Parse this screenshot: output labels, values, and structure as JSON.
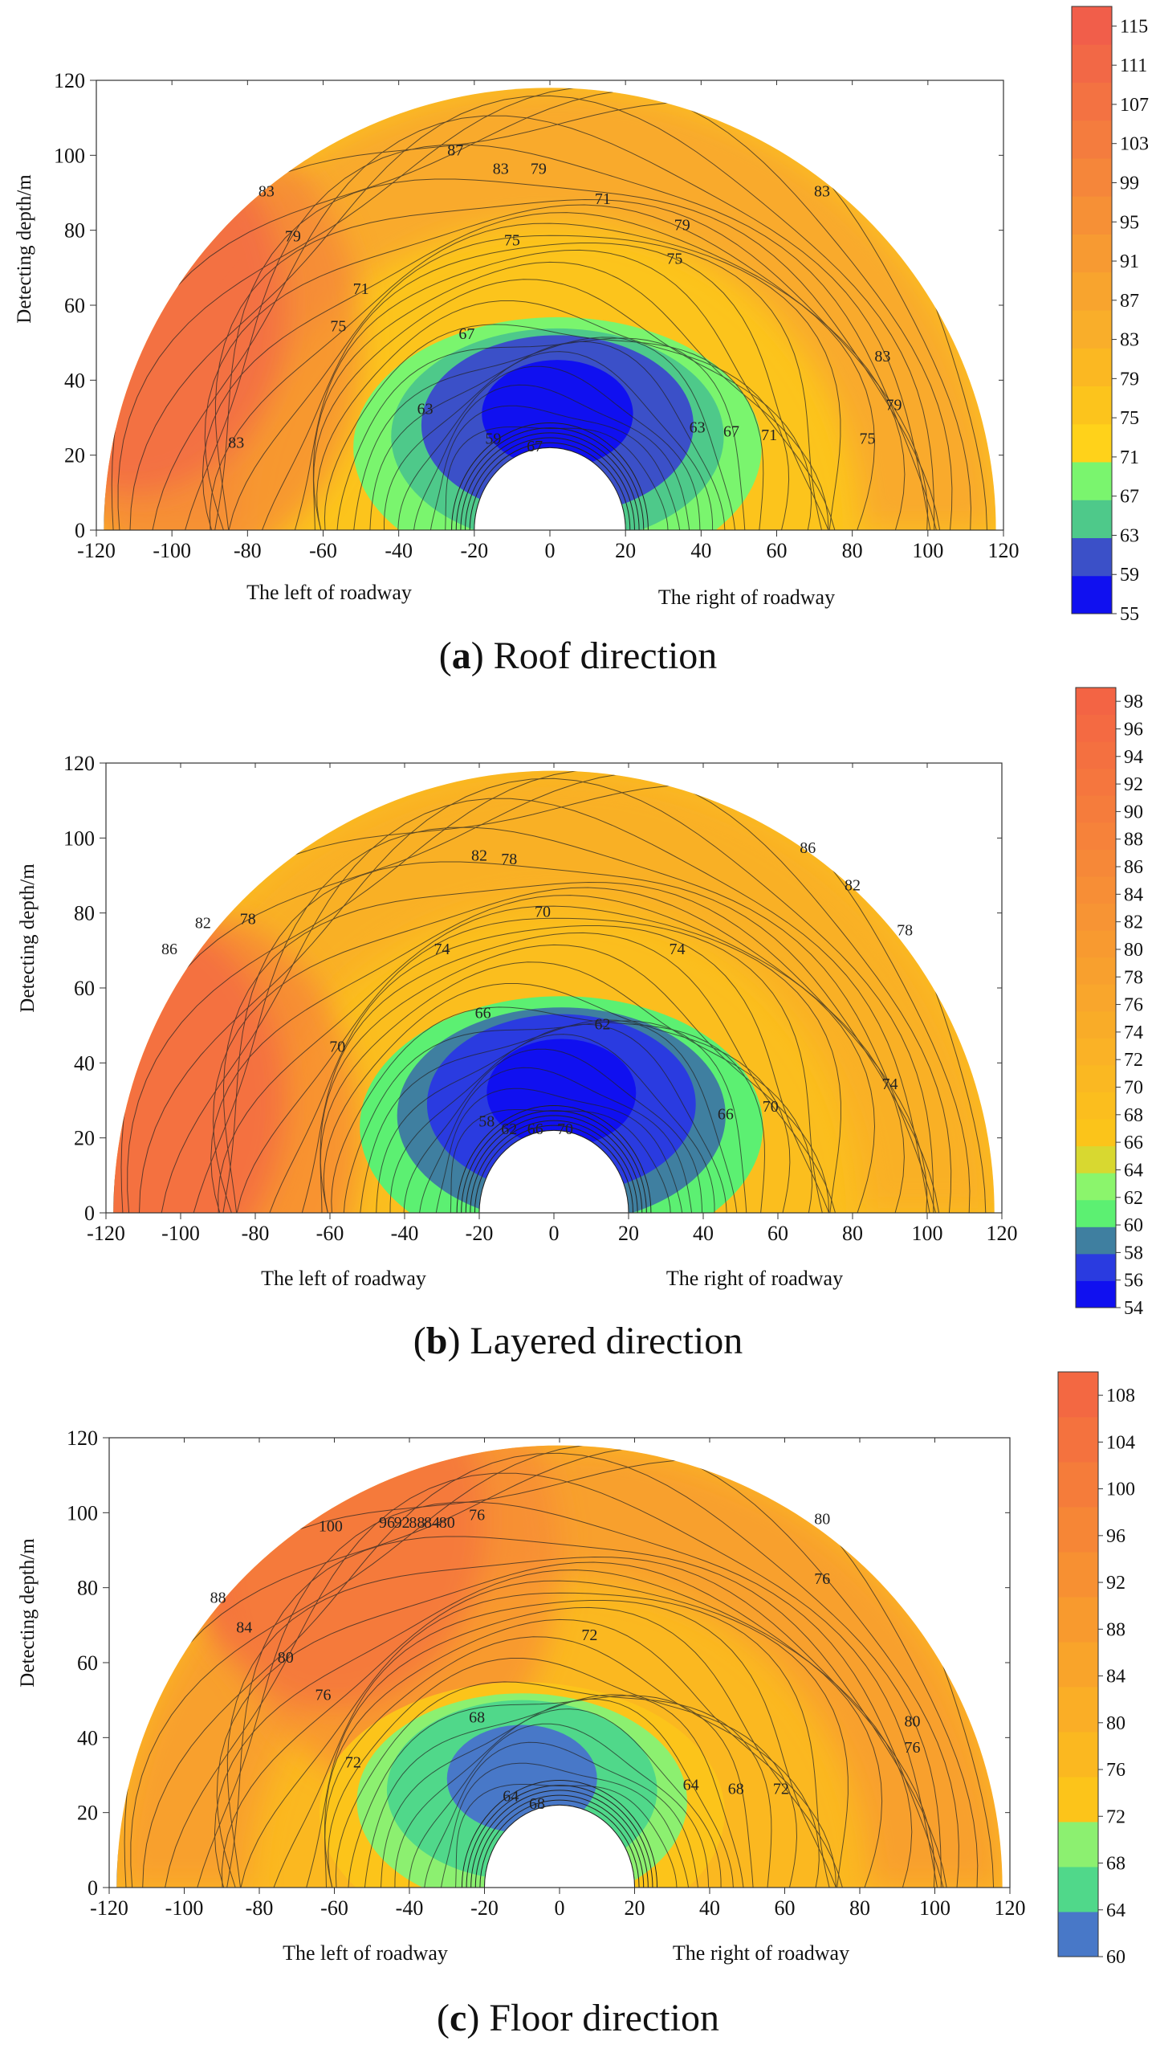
{
  "figure": {
    "panels": [
      {
        "letter": "a",
        "caption": "Roof direction"
      },
      {
        "letter": "b",
        "caption": "Layered direction"
      },
      {
        "letter": "c",
        "caption": "Floor direction"
      }
    ]
  },
  "chart_data": [
    {
      "type": "heatmap",
      "title": "",
      "xlabel": "",
      "ylabel": "Detecting depth/m",
      "side_labels": {
        "left": "The left of roadway",
        "right": "The right of roadway"
      },
      "xlim": [
        -120,
        120
      ],
      "ylim": [
        0,
        120
      ],
      "x_ticks": [
        -120,
        -100,
        -80,
        -60,
        -40,
        -20,
        0,
        20,
        40,
        60,
        80,
        100,
        120
      ],
      "y_ticks": [
        0,
        20,
        40,
        60,
        80,
        100,
        120
      ],
      "colorbar": {
        "min": 55,
        "max": 117,
        "ticks": [
          55,
          59,
          63,
          67,
          71,
          75,
          79,
          83,
          87,
          91,
          95,
          99,
          103,
          107,
          111,
          115
        ],
        "colors": [
          "#1010f0",
          "#3b50c8",
          "#4ec98a",
          "#7af56e",
          "#ffd21a",
          "#fcc41c",
          "#fbb822",
          "#f9ae2a",
          "#f8a42e",
          "#f79a32",
          "#f69036",
          "#f5863a",
          "#f47c3e",
          "#f37242",
          "#f26846",
          "#f15e4a"
        ]
      },
      "field": {
        "base": 76,
        "low_zone": {
          "center": [
            2,
            32
          ],
          "min": 55
        },
        "left_high": {
          "at": [
            -110,
            60
          ],
          "max": 115
        }
      },
      "contour_labels": [
        {
          "value": "87",
          "x": -25,
          "y": 100
        },
        {
          "value": "83",
          "x": -13,
          "y": 95
        },
        {
          "value": "79",
          "x": -3,
          "y": 95
        },
        {
          "value": "71",
          "x": 14,
          "y": 87
        },
        {
          "value": "75",
          "x": -10,
          "y": 76
        },
        {
          "value": "83",
          "x": 72,
          "y": 89
        },
        {
          "value": "79",
          "x": 35,
          "y": 80
        },
        {
          "value": "75",
          "x": 33,
          "y": 71
        },
        {
          "value": "79",
          "x": -68,
          "y": 77
        },
        {
          "value": "71",
          "x": -50,
          "y": 63
        },
        {
          "value": "75",
          "x": -56,
          "y": 53
        },
        {
          "value": "67",
          "x": -22,
          "y": 51
        },
        {
          "value": "83",
          "x": 88,
          "y": 45
        },
        {
          "value": "79",
          "x": 91,
          "y": 32
        },
        {
          "value": "75",
          "x": 84,
          "y": 23
        },
        {
          "value": "71",
          "x": 58,
          "y": 24
        },
        {
          "value": "67",
          "x": 48,
          "y": 25
        },
        {
          "value": "63",
          "x": 39,
          "y": 26
        },
        {
          "value": "63",
          "x": -33,
          "y": 31
        },
        {
          "value": "59",
          "x": -15,
          "y": 23
        },
        {
          "value": "67",
          "x": -4,
          "y": 21
        },
        {
          "value": "83",
          "x": -83,
          "y": 22
        },
        {
          "value": "83",
          "x": -75,
          "y": 89
        }
      ]
    },
    {
      "type": "heatmap",
      "title": "",
      "xlabel": "",
      "ylabel": "Detecting depth/m",
      "side_labels": {
        "left": "The left of roadway",
        "right": "The right of roadway"
      },
      "xlim": [
        -120,
        120
      ],
      "ylim": [
        0,
        120
      ],
      "x_ticks": [
        -120,
        -100,
        -80,
        -60,
        -40,
        -20,
        0,
        20,
        40,
        60,
        80,
        100,
        120
      ],
      "y_ticks": [
        0,
        20,
        40,
        60,
        80,
        100,
        120
      ],
      "colorbar": {
        "min": 54,
        "max": 99,
        "ticks": [
          54,
          56,
          58,
          60,
          62,
          64,
          66,
          68,
          70,
          72,
          74,
          76,
          78,
          80,
          82,
          84,
          86,
          88,
          90,
          92,
          94,
          96,
          98
        ],
        "colors": [
          "#1010f0",
          "#2a3be0",
          "#3f7fa0",
          "#5cf072",
          "#8bf56c",
          "#d8d830",
          "#fbc41a",
          "#fbbe1e",
          "#fab822",
          "#fab226",
          "#f9ac28",
          "#f9a62c",
          "#f8a02e",
          "#f89a30",
          "#f79434",
          "#f78e36",
          "#f68838",
          "#f6823a",
          "#f57c3c",
          "#f5763e",
          "#f47040",
          "#f46a42",
          "#f36444"
        ]
      },
      "field": {
        "base": 75,
        "low_zone": {
          "center": [
            2,
            33
          ],
          "min": 54
        },
        "left_high": {
          "at": [
            -112,
            30
          ],
          "max": 98
        }
      },
      "contour_labels": [
        {
          "value": "82",
          "x": -20,
          "y": 94
        },
        {
          "value": "78",
          "x": -12,
          "y": 93
        },
        {
          "value": "70",
          "x": -3,
          "y": 79
        },
        {
          "value": "86",
          "x": 68,
          "y": 96
        },
        {
          "value": "82",
          "x": 80,
          "y": 86
        },
        {
          "value": "78",
          "x": 94,
          "y": 74
        },
        {
          "value": "74",
          "x": -30,
          "y": 69
        },
        {
          "value": "74",
          "x": 33,
          "y": 69
        },
        {
          "value": "78",
          "x": -82,
          "y": 77
        },
        {
          "value": "82",
          "x": -94,
          "y": 76
        },
        {
          "value": "86",
          "x": -103,
          "y": 69
        },
        {
          "value": "66",
          "x": -19,
          "y": 52
        },
        {
          "value": "62",
          "x": 13,
          "y": 49
        },
        {
          "value": "70",
          "x": -58,
          "y": 43
        },
        {
          "value": "74",
          "x": 90,
          "y": 33
        },
        {
          "value": "70",
          "x": 58,
          "y": 27
        },
        {
          "value": "66",
          "x": 46,
          "y": 25
        },
        {
          "value": "58",
          "x": -18,
          "y": 23
        },
        {
          "value": "62",
          "x": -12,
          "y": 21
        },
        {
          "value": "66",
          "x": -5,
          "y": 21
        },
        {
          "value": "70",
          "x": 3,
          "y": 21
        }
      ]
    },
    {
      "type": "heatmap",
      "title": "",
      "xlabel": "",
      "ylabel": "Detecting depth/m",
      "side_labels": {
        "left": "The left of roadway",
        "right": "The right of roadway"
      },
      "xlim": [
        -120,
        120
      ],
      "ylim": [
        0,
        120
      ],
      "x_ticks": [
        -120,
        -100,
        -80,
        -60,
        -40,
        -20,
        0,
        20,
        40,
        60,
        80,
        100,
        120
      ],
      "y_ticks": [
        0,
        20,
        40,
        60,
        80,
        100,
        120
      ],
      "colorbar": {
        "min": 60,
        "max": 110,
        "ticks": [
          60,
          64,
          68,
          72,
          76,
          80,
          84,
          88,
          92,
          96,
          100,
          104,
          108
        ],
        "colors": [
          "#4878c8",
          "#50d88a",
          "#8cf070",
          "#fcc41a",
          "#fbb820",
          "#faae26",
          "#f9a42a",
          "#f89a2e",
          "#f79032",
          "#f68636",
          "#f57c3a",
          "#f4723e",
          "#f36842"
        ]
      },
      "field": {
        "base": 76,
        "low_zone": {
          "center": [
            -10,
            30
          ],
          "min": 60
        },
        "left_high": {
          "at": [
            -60,
            98
          ],
          "max": 108
        }
      },
      "contour_labels": [
        {
          "value": "100",
          "x": -61,
          "y": 95
        },
        {
          "value": "96",
          "x": -46,
          "y": 96
        },
        {
          "value": "92",
          "x": -42,
          "y": 96
        },
        {
          "value": "88",
          "x": -38,
          "y": 96
        },
        {
          "value": "84",
          "x": -34,
          "y": 96
        },
        {
          "value": "80",
          "x": -30,
          "y": 96
        },
        {
          "value": "76",
          "x": -22,
          "y": 98
        },
        {
          "value": "80",
          "x": 70,
          "y": 97
        },
        {
          "value": "76",
          "x": 70,
          "y": 81
        },
        {
          "value": "72",
          "x": 8,
          "y": 66
        },
        {
          "value": "88",
          "x": -91,
          "y": 76
        },
        {
          "value": "84",
          "x": -84,
          "y": 68
        },
        {
          "value": "80",
          "x": -73,
          "y": 60
        },
        {
          "value": "76",
          "x": -63,
          "y": 50
        },
        {
          "value": "72",
          "x": -55,
          "y": 32
        },
        {
          "value": "68",
          "x": -22,
          "y": 44
        },
        {
          "value": "80",
          "x": 94,
          "y": 43
        },
        {
          "value": "76",
          "x": 94,
          "y": 36
        },
        {
          "value": "64",
          "x": 35,
          "y": 26
        },
        {
          "value": "68",
          "x": 47,
          "y": 25
        },
        {
          "value": "72",
          "x": 59,
          "y": 25
        },
        {
          "value": "64",
          "x": -13,
          "y": 23
        },
        {
          "value": "68",
          "x": -6,
          "y": 21
        }
      ]
    }
  ]
}
